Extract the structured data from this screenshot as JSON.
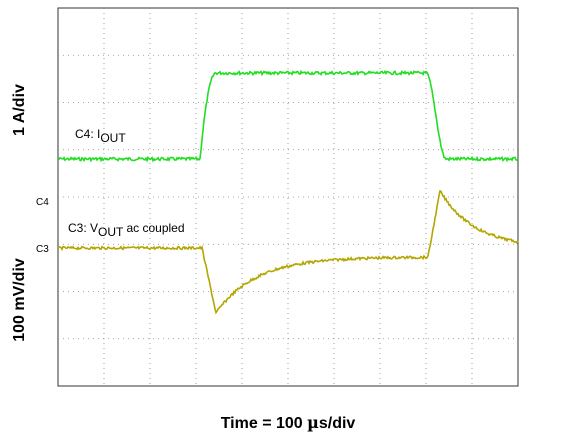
{
  "y_label_top": "1 A/div",
  "y_label_bottom": "100 mV/div",
  "x_label_prefix": "Time = 100 ",
  "x_label_mu": "µ",
  "x_label_suffix": "s/div",
  "channel_c4": {
    "marker": "C4",
    "label_prefix": "C4: I",
    "label_sub": "OUT",
    "label_suffix": "",
    "color": "#22dd22"
  },
  "channel_c3": {
    "marker": "C3",
    "label_prefix": "C3: V",
    "label_sub": "OUT",
    "label_suffix": " ac coupled",
    "color": "#b3a600"
  },
  "grid": {
    "horizontal_divisions": 10,
    "vertical_divisions": 8
  }
}
